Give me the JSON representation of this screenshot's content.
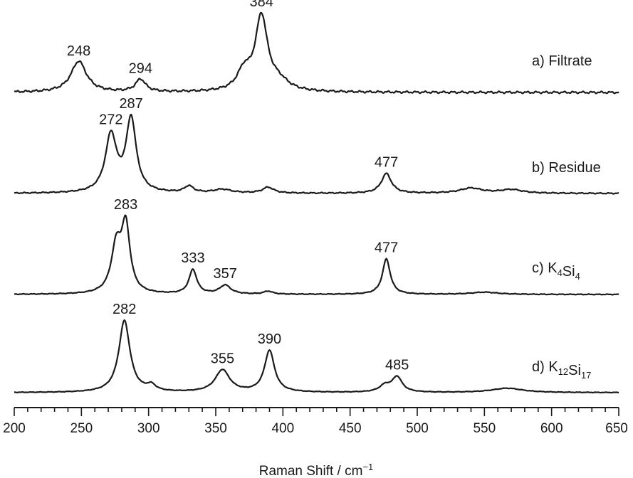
{
  "chart_data": {
    "type": "line",
    "xlabel": "Raman Shift / cm",
    "xlabel_sup": "−1",
    "xlim": [
      200,
      650
    ],
    "x_ticks": [
      "200",
      "250",
      "300",
      "350",
      "400",
      "450",
      "500",
      "550",
      "600",
      "650"
    ],
    "grid": false,
    "series": [
      {
        "name": "a) Filtrate",
        "label": {
          "prefix": "a) Filtrate",
          "parts": []
        },
        "peaks": [
          {
            "x": 248,
            "h": 0.42,
            "w": 7
          },
          {
            "x": 294,
            "h": 0.17,
            "w": 4.5
          },
          {
            "x": 371,
            "h": 0.25,
            "w": 6
          },
          {
            "x": 384,
            "h": 1.0,
            "w": 5.5
          },
          {
            "x": 397,
            "h": 0.12,
            "w": 9
          }
        ],
        "annotations": [
          "248",
          "294",
          "384"
        ],
        "annotation_x": [
          248,
          294,
          384
        ],
        "noise": 0.015
      },
      {
        "name": "b) Residue",
        "label": {
          "prefix": "b) ",
          "parts": [
            {
              "t": "Residue",
              "s": ""
            }
          ]
        },
        "peaks": [
          {
            "x": 272,
            "h": 0.78,
            "w": 5
          },
          {
            "x": 287,
            "h": 1.0,
            "w": 4.5
          },
          {
            "x": 330,
            "h": 0.09,
            "w": 4
          },
          {
            "x": 355,
            "h": 0.05,
            "w": 8
          },
          {
            "x": 389,
            "h": 0.08,
            "w": 5
          },
          {
            "x": 477,
            "h": 0.27,
            "w": 4.5
          },
          {
            "x": 540,
            "h": 0.07,
            "w": 10
          },
          {
            "x": 570,
            "h": 0.05,
            "w": 10
          }
        ],
        "annotations": [
          "272",
          "287",
          "477"
        ],
        "annotation_x": [
          272,
          287,
          477
        ],
        "noise": 0.008
      },
      {
        "name": "c) K4Si4",
        "label": {
          "prefix": "c) ",
          "parts": [
            {
              "t": "K",
              "s": "4"
            },
            {
              "t": "Si",
              "s": "4"
            }
          ]
        },
        "peaks": [
          {
            "x": 276,
            "h": 0.62,
            "w": 4.5
          },
          {
            "x": 283,
            "h": 0.88,
            "w": 3.8
          },
          {
            "x": 333,
            "h": 0.33,
            "w": 3.5
          },
          {
            "x": 357,
            "h": 0.12,
            "w": 5
          },
          {
            "x": 389,
            "h": 0.04,
            "w": 4
          },
          {
            "x": 477,
            "h": 0.48,
            "w": 3.5
          },
          {
            "x": 550,
            "h": 0.03,
            "w": 12
          }
        ],
        "annotations": [
          "283",
          "333",
          "357",
          "477"
        ],
        "annotation_x": [
          283,
          333,
          357,
          477
        ],
        "noise": 0.005
      },
      {
        "name": "d) K12Si17",
        "label": {
          "prefix": "d) ",
          "parts": [
            {
              "t": "K",
              "s": "12"
            },
            {
              "t": "Si",
              "s": "17"
            }
          ]
        },
        "peaks": [
          {
            "x": 282,
            "h": 1.0,
            "w": 5
          },
          {
            "x": 302,
            "h": 0.08,
            "w": 4
          },
          {
            "x": 355,
            "h": 0.31,
            "w": 6.5
          },
          {
            "x": 390,
            "h": 0.58,
            "w": 4.5
          },
          {
            "x": 476,
            "h": 0.09,
            "w": 5
          },
          {
            "x": 485,
            "h": 0.21,
            "w": 4.5
          },
          {
            "x": 567,
            "h": 0.06,
            "w": 14
          }
        ],
        "annotations": [
          "282",
          "355",
          "390",
          "485"
        ],
        "annotation_x": [
          282,
          355,
          390,
          485
        ],
        "noise": 0.004
      }
    ]
  }
}
